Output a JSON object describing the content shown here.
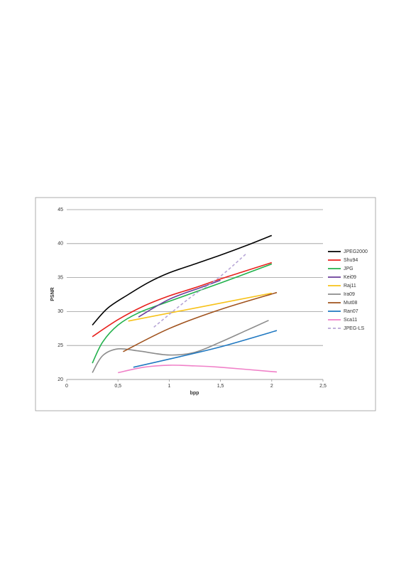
{
  "chart_data": {
    "type": "line",
    "xlabel": "bpp",
    "ylabel": "PSNR",
    "xlim": [
      0,
      2.5
    ],
    "xticks": [
      0,
      {
        "value": 0.5,
        "label": "0,5"
      },
      1,
      {
        "value": 1.5,
        "label": "1,5"
      },
      2,
      {
        "value": 2.5,
        "label": "2,5"
      }
    ],
    "ylim": [
      20,
      45
    ],
    "yticks": [
      20,
      25,
      30,
      35,
      40,
      45
    ],
    "grid": true,
    "legend": "right",
    "series": [
      {
        "name": "JPEG2000",
        "color": "#000000",
        "x": [
          0.25,
          0.4,
          0.6,
          0.8,
          1,
          1.25,
          1.5,
          1.75,
          2
        ],
        "values": [
          28,
          30.5,
          32.5,
          34.3,
          35.7,
          37,
          38.3,
          39.7,
          41.2
        ]
      },
      {
        "name": "Shu94",
        "color": "#e8211d",
        "x": [
          0.25,
          0.5,
          0.75,
          1,
          1.25,
          1.5,
          1.75,
          2
        ],
        "values": [
          26.3,
          28.8,
          30.8,
          32.3,
          33.5,
          34.8,
          36,
          37.2
        ]
      },
      {
        "name": "JPG",
        "color": "#22b14c",
        "x": [
          0.25,
          0.35,
          0.5,
          0.7,
          1,
          1.5,
          2
        ],
        "values": [
          22.4,
          25.5,
          28,
          29.8,
          31.5,
          34.2,
          37
        ]
      },
      {
        "name": "Kei09",
        "color": "#6a3d9a",
        "x": [
          0.7,
          1,
          1.3,
          1.5
        ],
        "values": [
          29.2,
          31.8,
          33.5,
          34.6
        ]
      },
      {
        "name": "Raj11",
        "color": "#f7c21a",
        "x": [
          0.6,
          2
        ],
        "values": [
          28.6,
          32.7
        ]
      },
      {
        "name": "Ira09",
        "color": "#8c8c8c",
        "x": [
          0.25,
          0.35,
          0.5,
          0.7,
          1,
          1.25,
          1.5,
          1.75,
          1.97
        ],
        "values": [
          21,
          23.5,
          24.5,
          24.2,
          23.6,
          24,
          25.5,
          27.2,
          28.7
        ]
      },
      {
        "name": "Mut08",
        "color": "#a0521d",
        "x": [
          0.55,
          1,
          1.5,
          2.05
        ],
        "values": [
          24.1,
          27.5,
          30.3,
          32.8
        ]
      },
      {
        "name": "Ran07",
        "color": "#1f78c1",
        "x": [
          0.65,
          1,
          1.5,
          2.05
        ],
        "values": [
          21.8,
          23,
          24.8,
          27.2
        ]
      },
      {
        "name": "Sca11",
        "color": "#f080c8",
        "x": [
          0.5,
          0.75,
          1,
          1.25,
          1.5,
          2.05
        ],
        "values": [
          21,
          21.8,
          22.1,
          22,
          21.8,
          21.1
        ]
      },
      {
        "name": "JPEG-LS",
        "color": "#b7a6d6",
        "dashed": true,
        "x": [
          0.85,
          1.2,
          1.5,
          1.75
        ],
        "values": [
          27.7,
          32,
          35.2,
          38.5
        ]
      }
    ]
  }
}
